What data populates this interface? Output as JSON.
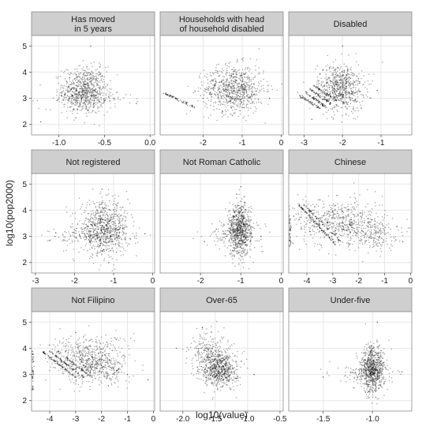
{
  "chart_data": {
    "type": "scatter",
    "layout": "faceted 3x3 small multiples",
    "xlabel": "log10(value)",
    "ylabel": "log10(pop2000)",
    "grid": true,
    "point_color": "#000000",
    "strip_color": "#cfcfcf",
    "panel_border_color": "#8c8c8c",
    "grid_color": "#e8e8e8",
    "panels": [
      {
        "title_lines": [
          "Has moved",
          "in 5 years"
        ],
        "xlim": [
          -1.3,
          0.05
        ],
        "ylim": [
          1.6,
          5.4
        ],
        "xticks": [
          -1.0,
          -0.5,
          0.0
        ],
        "xtick_labels": [
          "-1.0",
          "-0.5",
          "0.0"
        ],
        "yticks": [
          2,
          3,
          4,
          5
        ],
        "ytick_labels": [
          "2",
          "3",
          "4",
          "5"
        ],
        "clusters": [
          {
            "x": -0.72,
            "y": 3.3,
            "sx": 0.12,
            "sy": 0.45,
            "n": 700
          },
          {
            "x": -0.7,
            "y": 3.0,
            "sx": 0.25,
            "sy": 0.2,
            "n": 150
          }
        ],
        "sample_points": [
          [
            -0.7,
            3.3
          ],
          [
            -0.85,
            3.1
          ],
          [
            -0.55,
            4.2
          ],
          [
            -1.2,
            2.1
          ],
          [
            -0.15,
            2.8
          ],
          [
            -0.65,
            5.0
          ]
        ]
      },
      {
        "title_lines": [
          "Households with head",
          "of household disabled"
        ],
        "xlim": [
          -3.1,
          0.05
        ],
        "ylim": [
          1.6,
          5.4
        ],
        "xticks": [
          -2,
          -1,
          0
        ],
        "xtick_labels": [
          "-2",
          "-1",
          "0"
        ],
        "yticks": [
          2,
          3,
          4,
          5
        ],
        "ytick_labels": [],
        "clusters": [
          {
            "x": -1.2,
            "y": 3.35,
            "sx": 0.38,
            "sy": 0.45,
            "n": 800
          }
        ],
        "lines": [
          {
            "x0": -3.0,
            "y0": 3.2,
            "x1": -2.2,
            "y1": 2.65,
            "n": 60
          }
        ],
        "sample_points": [
          [
            -1.2,
            3.3
          ],
          [
            -1.0,
            4.5
          ],
          [
            -2.0,
            3.0
          ],
          [
            -0.3,
            3.0
          ],
          [
            -1.5,
            2.5
          ]
        ]
      },
      {
        "title_lines": [
          "Disabled"
        ],
        "xlim": [
          -3.4,
          -0.2
        ],
        "ylim": [
          1.6,
          5.4
        ],
        "xticks": [
          -3,
          -2,
          -1
        ],
        "xtick_labels": [
          "-3",
          "-2",
          "-1"
        ],
        "yticks": [
          2,
          3,
          4,
          5
        ],
        "ytick_labels": [],
        "clusters": [
          {
            "x": -2.05,
            "y": 3.4,
            "sx": 0.3,
            "sy": 0.45,
            "n": 700
          }
        ],
        "lines": [
          {
            "x0": -3.2,
            "y0": 3.2,
            "x1": -2.6,
            "y1": 2.6,
            "n": 50
          },
          {
            "x0": -3.05,
            "y0": 3.3,
            "x1": -2.45,
            "y1": 2.7,
            "n": 50
          },
          {
            "x0": -2.9,
            "y0": 3.4,
            "x1": -2.3,
            "y1": 2.8,
            "n": 50
          },
          {
            "x0": -2.75,
            "y0": 3.5,
            "x1": -2.15,
            "y1": 2.9,
            "n": 50
          }
        ],
        "sample_points": [
          [
            -2.0,
            3.4
          ],
          [
            -2.0,
            5.0
          ],
          [
            -1.1,
            3.3
          ],
          [
            -2.8,
            2.2
          ]
        ]
      },
      {
        "title_lines": [
          "Not registered"
        ],
        "xlim": [
          -3.1,
          0.05
        ],
        "ylim": [
          1.6,
          5.4
        ],
        "xticks": [
          -3,
          -2,
          -1,
          0
        ],
        "xtick_labels": [
          "-3",
          "-2",
          "-1",
          "0"
        ],
        "yticks": [
          2,
          3,
          4,
          5
        ],
        "ytick_labels": [
          "2",
          "3",
          "4",
          "5"
        ],
        "clusters": [
          {
            "x": -1.25,
            "y": 3.3,
            "sx": 0.32,
            "sy": 0.5,
            "n": 800
          },
          {
            "x": -1.5,
            "y": 3.0,
            "sx": 0.55,
            "sy": 0.2,
            "n": 150
          }
        ],
        "sample_points": [
          [
            -1.2,
            3.2
          ],
          [
            -1.3,
            4.8
          ],
          [
            -2.5,
            3.0
          ],
          [
            -0.2,
            3.1
          ]
        ]
      },
      {
        "title_lines": [
          "Not Roman Catholic"
        ],
        "xlim": [
          -3.0,
          0.05
        ],
        "ylim": [
          1.6,
          5.4
        ],
        "xticks": [
          -2,
          -1,
          0
        ],
        "xtick_labels": [
          "-2",
          "-1",
          "0"
        ],
        "yticks": [
          2,
          3,
          4,
          5
        ],
        "ytick_labels": [],
        "clusters": [
          {
            "x": -1.02,
            "y": 3.25,
            "sx": 0.14,
            "sy": 0.5,
            "n": 750
          },
          {
            "x": -1.15,
            "y": 3.1,
            "sx": 0.35,
            "sy": 0.25,
            "n": 150
          }
        ],
        "sample_points": [
          [
            -1.0,
            3.2
          ],
          [
            -1.0,
            4.9
          ],
          [
            -1.9,
            2.8
          ],
          [
            -0.5,
            3.0
          ]
        ]
      },
      {
        "title_lines": [
          "Chinese"
        ],
        "xlim": [
          -4.7,
          0.05
        ],
        "ylim": [
          1.6,
          5.4
        ],
        "xticks": [
          -4,
          -3,
          -2,
          -1,
          0
        ],
        "xtick_labels": [
          "-4",
          "-3",
          "-2",
          "-1",
          "0"
        ],
        "yticks": [
          2,
          3,
          4,
          5
        ],
        "ytick_labels": [],
        "clusters": [
          {
            "x": -2.8,
            "y": 3.55,
            "sx": 0.85,
            "sy": 0.45,
            "n": 600
          },
          {
            "x": -1.5,
            "y": 3.1,
            "sx": 0.5,
            "sy": 0.3,
            "n": 200
          }
        ],
        "lines": [
          {
            "x0": -4.3,
            "y0": 4.2,
            "x1": -2.9,
            "y1": 2.7,
            "n": 80
          },
          {
            "x0": -4.1,
            "y0": 4.2,
            "x1": -2.7,
            "y1": 2.8,
            "n": 60
          },
          {
            "x0": -4.65,
            "y0": 2.6,
            "x1": -4.65,
            "y1": 3.8,
            "n": 40
          }
        ],
        "sample_points": [
          [
            -3.0,
            3.5
          ],
          [
            -3.5,
            4.4
          ],
          [
            -1.2,
            3.0
          ],
          [
            -0.3,
            2.8
          ]
        ]
      },
      {
        "title_lines": [
          "Not Filipino"
        ],
        "xlim": [
          -4.7,
          0.05
        ],
        "ylim": [
          1.6,
          5.4
        ],
        "xticks": [
          -4,
          -3,
          -2,
          -1,
          0
        ],
        "xtick_labels": [
          "-4",
          "-3",
          "-2",
          "-1",
          "0"
        ],
        "yticks": [
          2,
          3,
          4,
          5
        ],
        "ytick_labels": [
          "2",
          "3",
          "4",
          "5"
        ],
        "clusters": [
          {
            "x": -2.5,
            "y": 3.6,
            "sx": 0.75,
            "sy": 0.45,
            "n": 550
          },
          {
            "x": -2.0,
            "y": 3.2,
            "sx": 0.5,
            "sy": 0.3,
            "n": 200
          }
        ],
        "lines": [
          {
            "x0": -4.3,
            "y0": 3.9,
            "x1": -3.0,
            "y1": 2.9,
            "n": 70
          },
          {
            "x0": -4.0,
            "y0": 3.9,
            "x1": -2.7,
            "y1": 2.9,
            "n": 60
          },
          {
            "x0": -3.7,
            "y0": 3.9,
            "x1": -2.4,
            "y1": 2.9,
            "n": 50
          },
          {
            "x0": -4.65,
            "y0": 2.4,
            "x1": -4.65,
            "y1": 3.9,
            "n": 40
          }
        ],
        "sample_points": [
          [
            -2.5,
            3.6
          ],
          [
            -3.0,
            4.6
          ],
          [
            -1.0,
            3.0
          ],
          [
            -0.2,
            2.8
          ]
        ]
      },
      {
        "title_lines": [
          "Over-65"
        ],
        "xlim": [
          -2.35,
          -0.45
        ],
        "ylim": [
          1.6,
          5.4
        ],
        "xticks": [
          -2.0,
          -1.5,
          -1.0,
          -0.5
        ],
        "xtick_labels": [
          "-2.0",
          "-1.5",
          "-1.0",
          "-0.5"
        ],
        "yticks": [
          2,
          3,
          4,
          5
        ],
        "ytick_labels": [],
        "clusters": [
          {
            "x": -1.42,
            "y": 3.2,
            "sx": 0.13,
            "sy": 0.35,
            "n": 650
          },
          {
            "x": -1.6,
            "y": 3.8,
            "sx": 0.15,
            "sy": 0.45,
            "n": 250
          }
        ],
        "sample_points": [
          [
            -1.4,
            3.2
          ],
          [
            -1.7,
            4.8
          ],
          [
            -0.9,
            3.0
          ],
          [
            -2.1,
            4.0
          ]
        ]
      },
      {
        "title_lines": [
          "Under-five"
        ],
        "xlim": [
          -1.85,
          -0.6
        ],
        "ylim": [
          1.6,
          5.4
        ],
        "xticks": [
          -1.5,
          -1.0
        ],
        "xtick_labels": [
          "-1.5",
          "-1.0"
        ],
        "yticks": [
          2,
          3,
          4,
          5
        ],
        "ytick_labels": [],
        "clusters": [
          {
            "x": -1.0,
            "y": 3.2,
            "sx": 0.06,
            "sy": 0.45,
            "n": 750
          },
          {
            "x": -1.05,
            "y": 3.0,
            "sx": 0.15,
            "sy": 0.2,
            "n": 150
          }
        ],
        "sample_points": [
          [
            -1.0,
            3.2
          ],
          [
            -0.95,
            5.0
          ],
          [
            -1.5,
            2.9
          ],
          [
            -0.7,
            3.1
          ]
        ]
      }
    ]
  }
}
